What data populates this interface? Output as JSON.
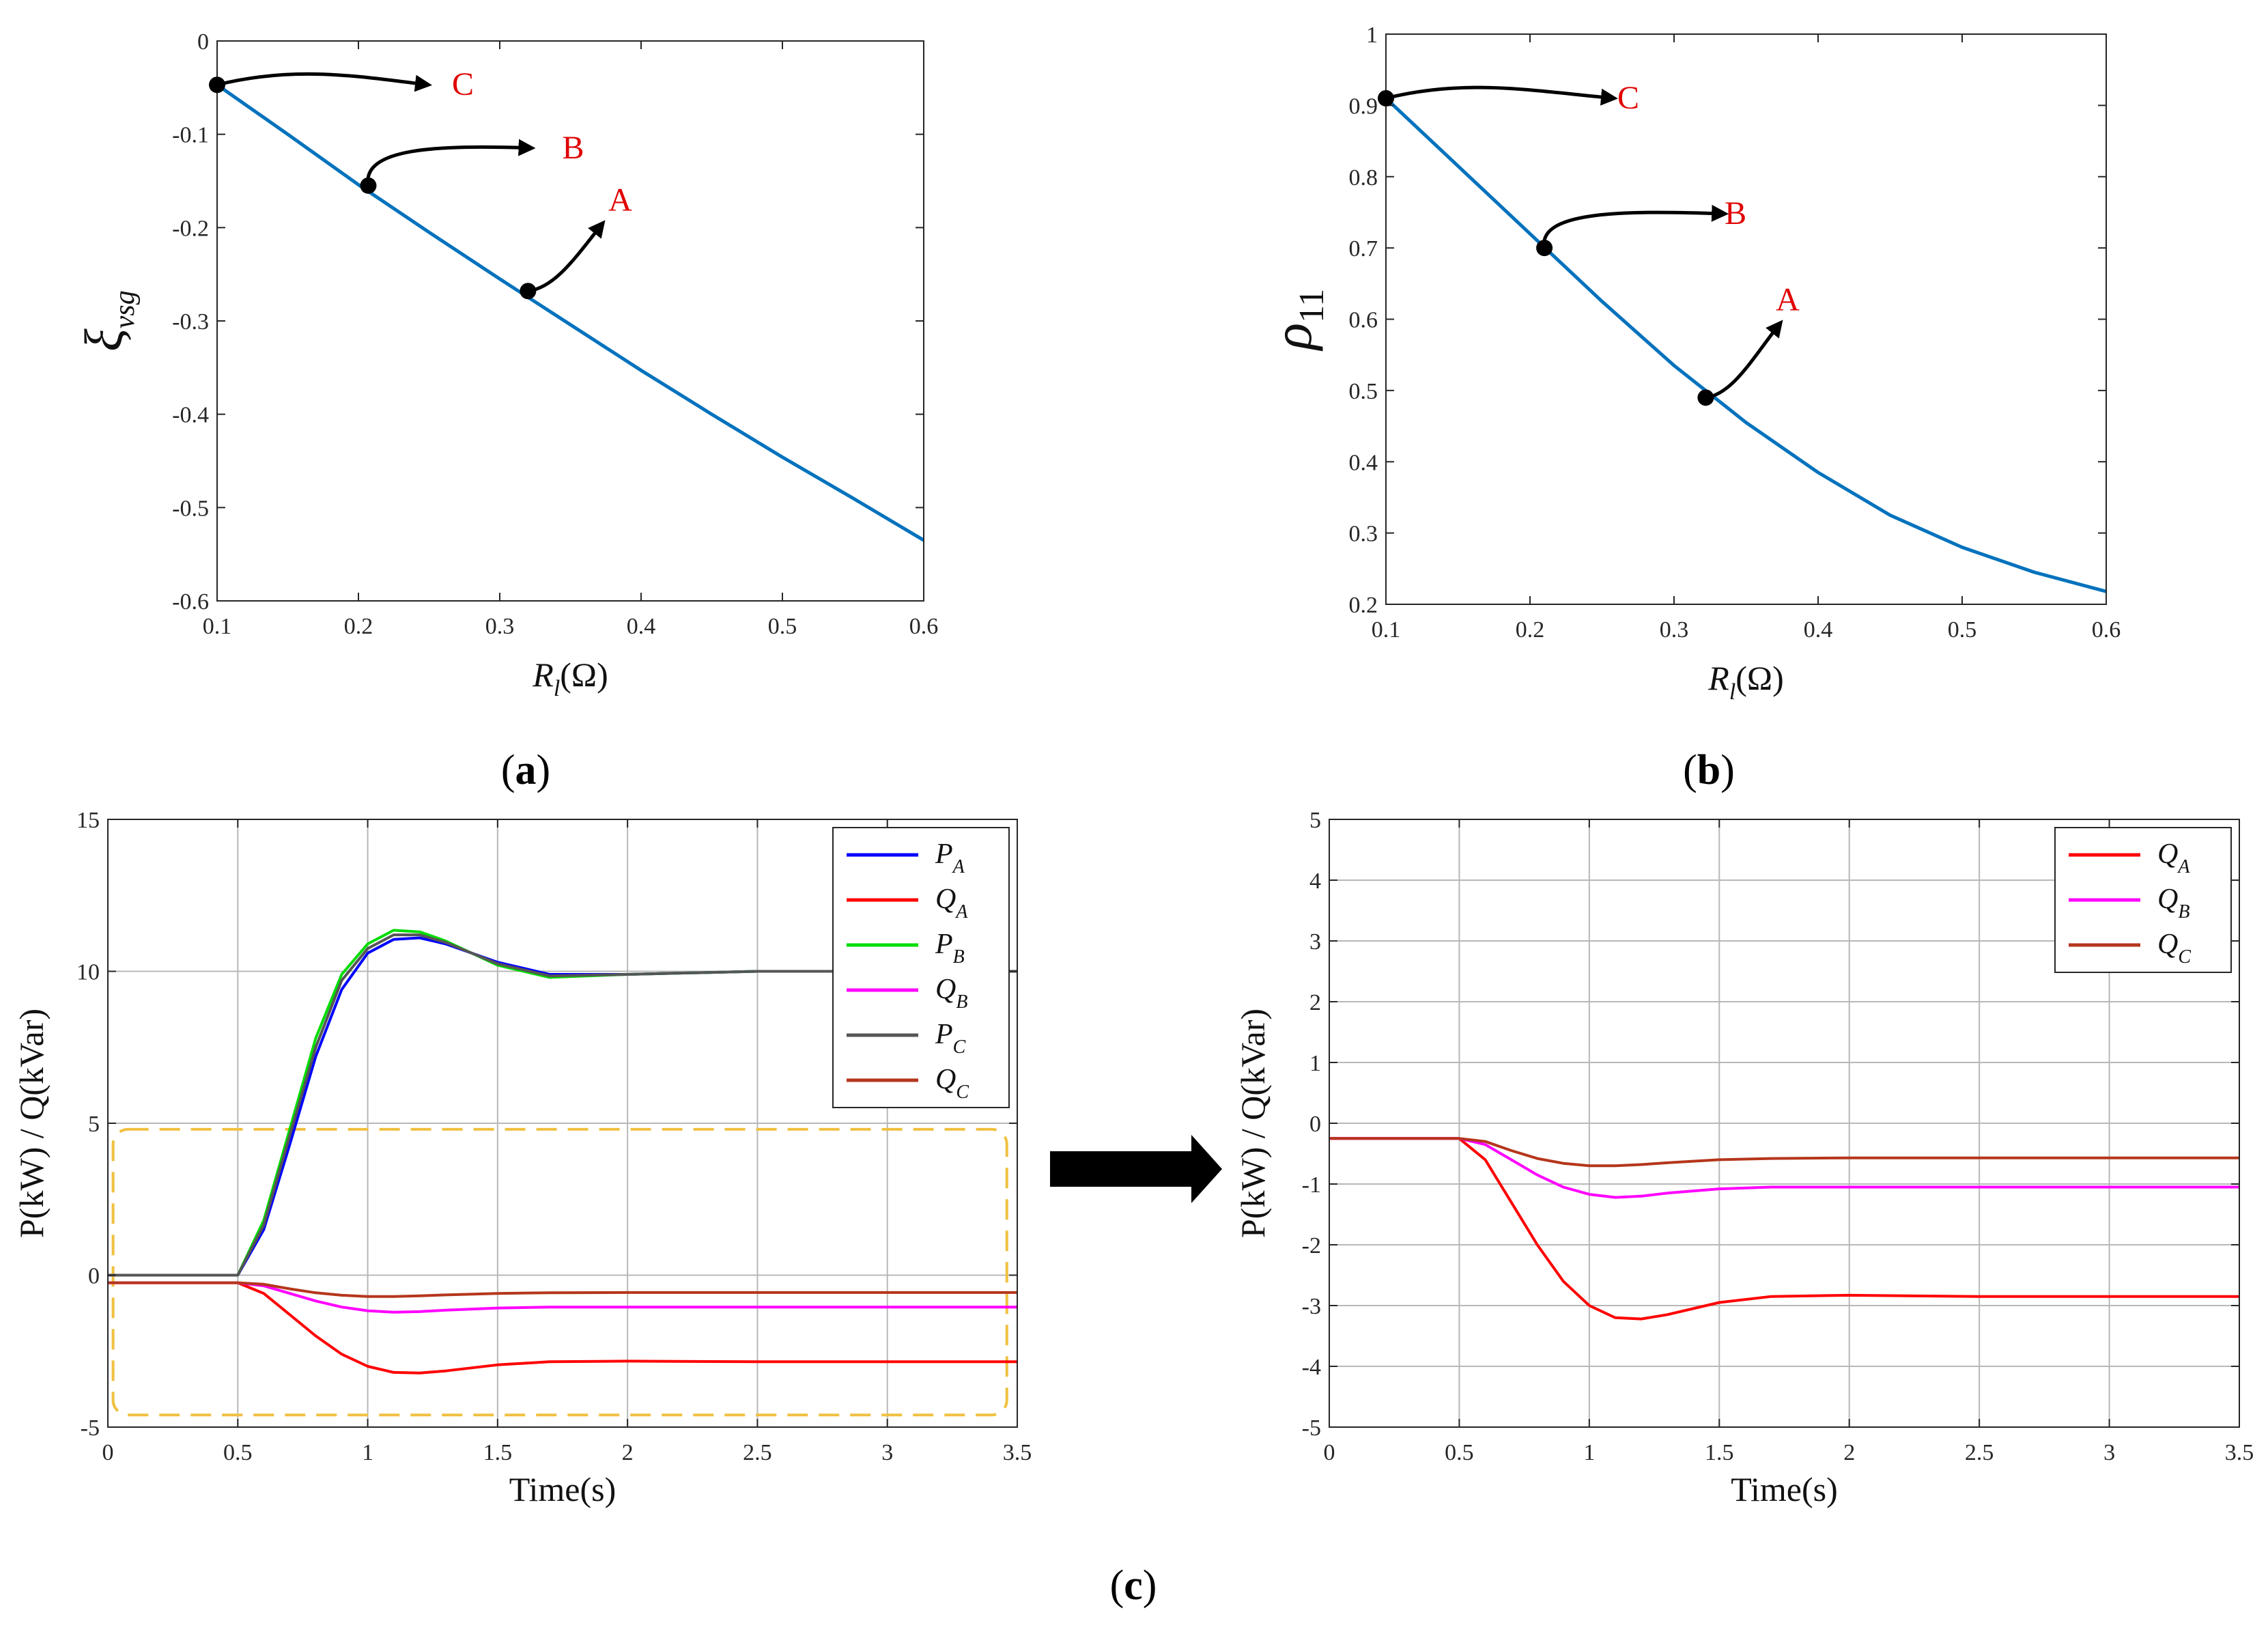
{
  "chart_data": [
    {
      "id": "a",
      "type": "line",
      "caption": "(a)",
      "ylabel": "ξvsg",
      "xlabel": "Rl(Ω)",
      "xlim": [
        0.1,
        0.6
      ],
      "ylim": [
        -0.6,
        0
      ],
      "xticks": [
        0.1,
        0.2,
        0.3,
        0.4,
        0.5,
        0.6
      ],
      "yticks": [
        0,
        -0.1,
        -0.2,
        -0.3,
        -0.4,
        -0.5,
        -0.6
      ],
      "grid": false,
      "series": [
        {
          "name": "ξvsg",
          "color": "#0072BD",
          "x": [
            0.1,
            0.15,
            0.2,
            0.25,
            0.3,
            0.35,
            0.4,
            0.45,
            0.5,
            0.55,
            0.6
          ],
          "y": [
            -0.047,
            -0.1,
            -0.154,
            -0.205,
            -0.255,
            -0.304,
            -0.353,
            -0.4,
            -0.446,
            -0.49,
            -0.535
          ]
        }
      ],
      "markers": [
        {
          "label": "C",
          "x": 0.1,
          "y": -0.047
        },
        {
          "label": "B",
          "x": 0.207,
          "y": -0.155
        },
        {
          "label": "A",
          "x": 0.32,
          "y": -0.268
        }
      ]
    },
    {
      "id": "b",
      "type": "line",
      "caption": "(b)",
      "ylabel": "ρ11",
      "xlabel": "Rl(Ω)",
      "xlim": [
        0.1,
        0.6
      ],
      "ylim": [
        0.2,
        1
      ],
      "xticks": [
        0.1,
        0.2,
        0.3,
        0.4,
        0.5,
        0.6
      ],
      "yticks": [
        0.2,
        0.3,
        0.4,
        0.5,
        0.6,
        0.7,
        0.8,
        0.9,
        1
      ],
      "grid": false,
      "series": [
        {
          "name": "ρ11",
          "color": "#0072BD",
          "x": [
            0.1,
            0.15,
            0.2,
            0.25,
            0.3,
            0.35,
            0.4,
            0.45,
            0.5,
            0.55,
            0.6
          ],
          "y": [
            0.91,
            0.815,
            0.72,
            0.625,
            0.535,
            0.455,
            0.385,
            0.325,
            0.28,
            0.245,
            0.218
          ]
        }
      ],
      "markers": [
        {
          "label": "C",
          "x": 0.1,
          "y": 0.91
        },
        {
          "label": "B",
          "x": 0.21,
          "y": 0.7
        },
        {
          "label": "A",
          "x": 0.322,
          "y": 0.49
        }
      ]
    },
    {
      "id": "c1",
      "type": "line",
      "caption": "(c)",
      "ylabel": "P(kW) / Q(kVar)",
      "xlabel": "Time(s)",
      "xlim": [
        0,
        3.5
      ],
      "ylim": [
        -5,
        15
      ],
      "xticks": [
        0,
        0.5,
        1,
        1.5,
        2,
        2.5,
        3,
        3.5
      ],
      "yticks": [
        -5,
        0,
        5,
        10,
        15
      ],
      "grid": true,
      "legend": "top-right",
      "highlight_box": {
        "x": [
          0.02,
          3.46
        ],
        "y": [
          -4.6,
          4.8
        ],
        "color": "#f0c040"
      },
      "series": [
        {
          "name": "PA",
          "main": "P",
          "sub": "A",
          "color": "#0000ff",
          "x": [
            0,
            0.5,
            0.6,
            0.7,
            0.8,
            0.9,
            1.0,
            1.1,
            1.2,
            1.3,
            1.5,
            1.7,
            2.0,
            2.5,
            3.0,
            3.5
          ],
          "y": [
            0,
            0,
            1.5,
            4.3,
            7.2,
            9.4,
            10.6,
            11.05,
            11.1,
            10.9,
            10.3,
            9.9,
            9.9,
            10.0,
            10.0,
            10.0
          ]
        },
        {
          "name": "QA",
          "main": "Q",
          "sub": "A",
          "color": "#ff0000",
          "x": [
            0,
            0.5,
            0.6,
            0.7,
            0.8,
            0.9,
            1.0,
            1.1,
            1.2,
            1.3,
            1.5,
            1.7,
            2.0,
            2.5,
            3.0,
            3.5
          ],
          "y": [
            -0.25,
            -0.25,
            -0.6,
            -1.3,
            -2.0,
            -2.6,
            -3.0,
            -3.2,
            -3.22,
            -3.15,
            -2.95,
            -2.85,
            -2.83,
            -2.85,
            -2.85,
            -2.85
          ]
        },
        {
          "name": "PB",
          "main": "P",
          "sub": "B",
          "color": "#00dd00",
          "x": [
            0,
            0.5,
            0.6,
            0.7,
            0.8,
            0.9,
            1.0,
            1.1,
            1.2,
            1.3,
            1.5,
            1.7,
            2.0,
            2.5,
            3.0,
            3.5
          ],
          "y": [
            0,
            0,
            1.8,
            4.8,
            7.8,
            9.9,
            10.9,
            11.35,
            11.3,
            11.0,
            10.2,
            9.8,
            9.9,
            10.0,
            10.0,
            10.0
          ]
        },
        {
          "name": "QB",
          "main": "Q",
          "sub": "B",
          "color": "#ff00ff",
          "x": [
            0,
            0.5,
            0.6,
            0.7,
            0.8,
            0.9,
            1.0,
            1.1,
            1.2,
            1.3,
            1.5,
            1.7,
            2.0,
            2.5,
            3.0,
            3.5
          ],
          "y": [
            -0.25,
            -0.25,
            -0.35,
            -0.6,
            -0.85,
            -1.05,
            -1.17,
            -1.22,
            -1.2,
            -1.15,
            -1.08,
            -1.05,
            -1.05,
            -1.05,
            -1.05,
            -1.05
          ]
        },
        {
          "name": "PC",
          "main": "P",
          "sub": "C",
          "color": "#555555",
          "x": [
            0,
            0.5,
            0.6,
            0.7,
            0.8,
            0.9,
            1.0,
            1.1,
            1.2,
            1.3,
            1.5,
            1.7,
            2.0,
            2.5,
            3.0,
            3.5
          ],
          "y": [
            0,
            0,
            1.65,
            4.6,
            7.5,
            9.7,
            10.75,
            11.2,
            11.2,
            10.95,
            10.25,
            9.85,
            9.9,
            10.0,
            10.0,
            10.0
          ]
        },
        {
          "name": "QC",
          "main": "Q",
          "sub": "C",
          "color": "#b5361c",
          "x": [
            0,
            0.5,
            0.6,
            0.7,
            0.8,
            0.9,
            1.0,
            1.1,
            1.2,
            1.3,
            1.5,
            1.7,
            2.0,
            2.5,
            3.0,
            3.5
          ],
          "y": [
            -0.25,
            -0.25,
            -0.3,
            -0.45,
            -0.58,
            -0.66,
            -0.7,
            -0.7,
            -0.68,
            -0.65,
            -0.6,
            -0.58,
            -0.57,
            -0.57,
            -0.57,
            -0.57
          ]
        }
      ]
    },
    {
      "id": "c2",
      "type": "line",
      "ylabel": "P(kW) / Q(kVar)",
      "xlabel": "Time(s)",
      "xlim": [
        0,
        3.5
      ],
      "ylim": [
        -5,
        5
      ],
      "xticks": [
        0,
        0.5,
        1,
        1.5,
        2,
        2.5,
        3,
        3.5
      ],
      "yticks": [
        -5,
        -4,
        -3,
        -2,
        -1,
        0,
        1,
        2,
        3,
        4,
        5
      ],
      "grid": true,
      "legend": "top-right",
      "series": [
        {
          "name": "QA",
          "main": "Q",
          "sub": "A",
          "color": "#ff0000",
          "x": [
            0,
            0.5,
            0.6,
            0.7,
            0.8,
            0.9,
            1.0,
            1.1,
            1.2,
            1.3,
            1.5,
            1.7,
            2.0,
            2.5,
            3.0,
            3.5
          ],
          "y": [
            -0.25,
            -0.25,
            -0.6,
            -1.3,
            -2.0,
            -2.6,
            -3.0,
            -3.2,
            -3.22,
            -3.15,
            -2.95,
            -2.85,
            -2.83,
            -2.85,
            -2.85,
            -2.85
          ]
        },
        {
          "name": "QB",
          "main": "Q",
          "sub": "B",
          "color": "#ff00ff",
          "x": [
            0,
            0.5,
            0.6,
            0.7,
            0.8,
            0.9,
            1.0,
            1.1,
            1.2,
            1.3,
            1.5,
            1.7,
            2.0,
            2.5,
            3.0,
            3.5
          ],
          "y": [
            -0.25,
            -0.25,
            -0.35,
            -0.6,
            -0.85,
            -1.05,
            -1.17,
            -1.22,
            -1.2,
            -1.15,
            -1.08,
            -1.05,
            -1.05,
            -1.05,
            -1.05,
            -1.05
          ]
        },
        {
          "name": "QC",
          "main": "Q",
          "sub": "C",
          "color": "#b5361c",
          "x": [
            0,
            0.5,
            0.6,
            0.7,
            0.8,
            0.9,
            1.0,
            1.1,
            1.2,
            1.3,
            1.5,
            1.7,
            2.0,
            2.5,
            3.0,
            3.5
          ],
          "y": [
            -0.25,
            -0.25,
            -0.3,
            -0.45,
            -0.58,
            -0.66,
            -0.7,
            -0.7,
            -0.68,
            -0.65,
            -0.6,
            -0.58,
            -0.57,
            -0.57,
            -0.57,
            -0.57
          ]
        }
      ]
    }
  ]
}
